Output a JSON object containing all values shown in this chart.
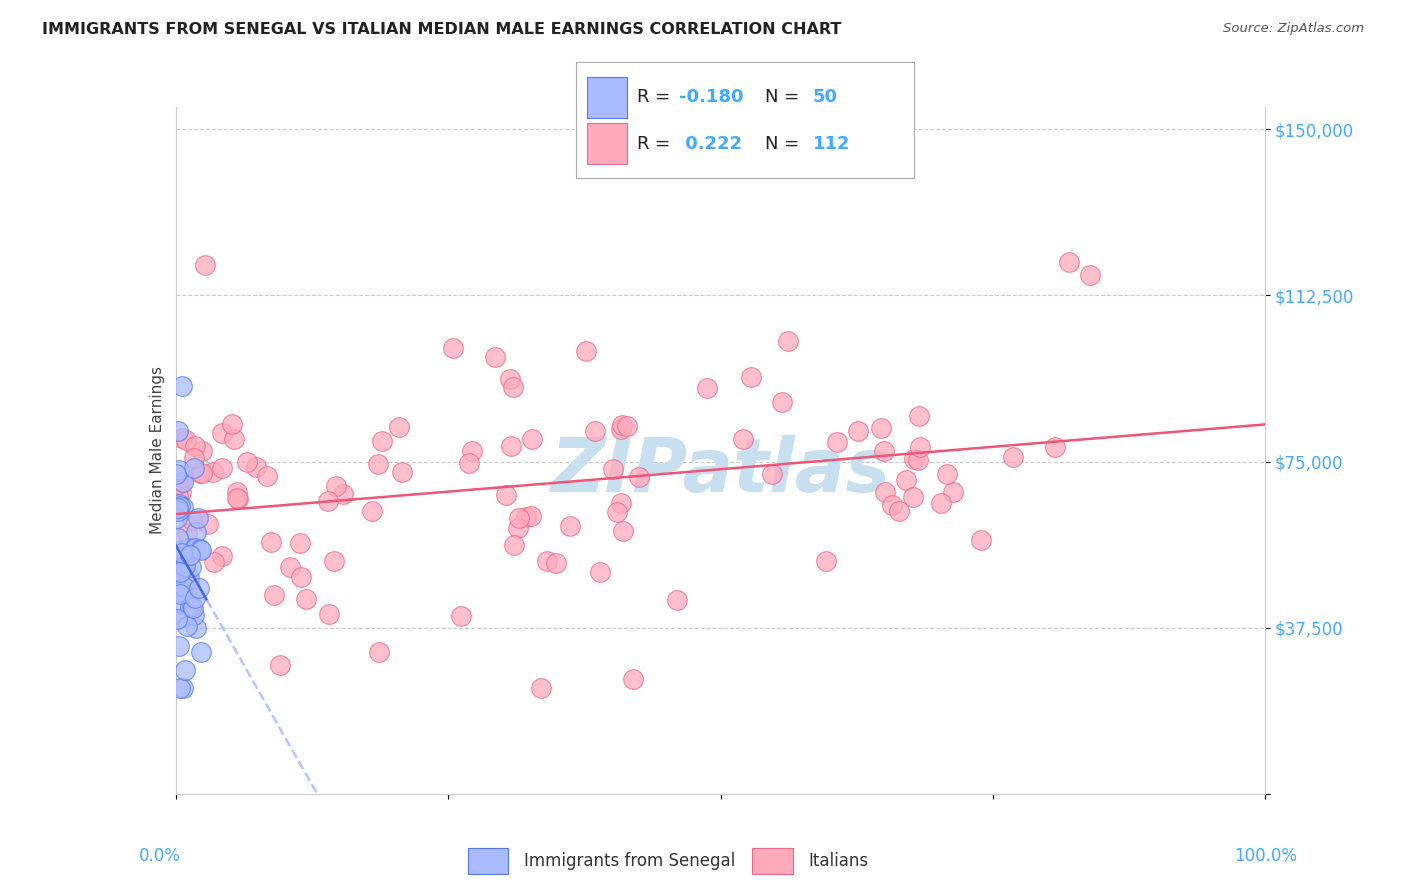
{
  "title": "IMMIGRANTS FROM SENEGAL VS ITALIAN MEDIAN MALE EARNINGS CORRELATION CHART",
  "source": "Source: ZipAtlas.com",
  "ylabel": "Median Male Earnings",
  "color_blue_fill": "#aabbff",
  "color_blue_edge": "#5577ee",
  "color_blue_line": "#4466dd",
  "color_pink_fill": "#ffaabb",
  "color_pink_edge": "#ee6688",
  "color_pink_line": "#ee5577",
  "color_grid": "#cccccc",
  "color_axis_labels": "#44aaff",
  "watermark_color": "#c8dff0",
  "R1": "-0.180",
  "N1": "50",
  "R2": "0.222",
  "N2": "112",
  "legend_label1": "Immigrants from Senegal",
  "legend_label2": "Italians",
  "ytick_vals": [
    0,
    37500,
    75000,
    112500,
    150000
  ],
  "ytick_labels": [
    "",
    "$37,500",
    "$75,000",
    "$112,500",
    "$150,000"
  ],
  "xlim": [
    0,
    100
  ],
  "ylim": [
    0,
    155000
  ]
}
